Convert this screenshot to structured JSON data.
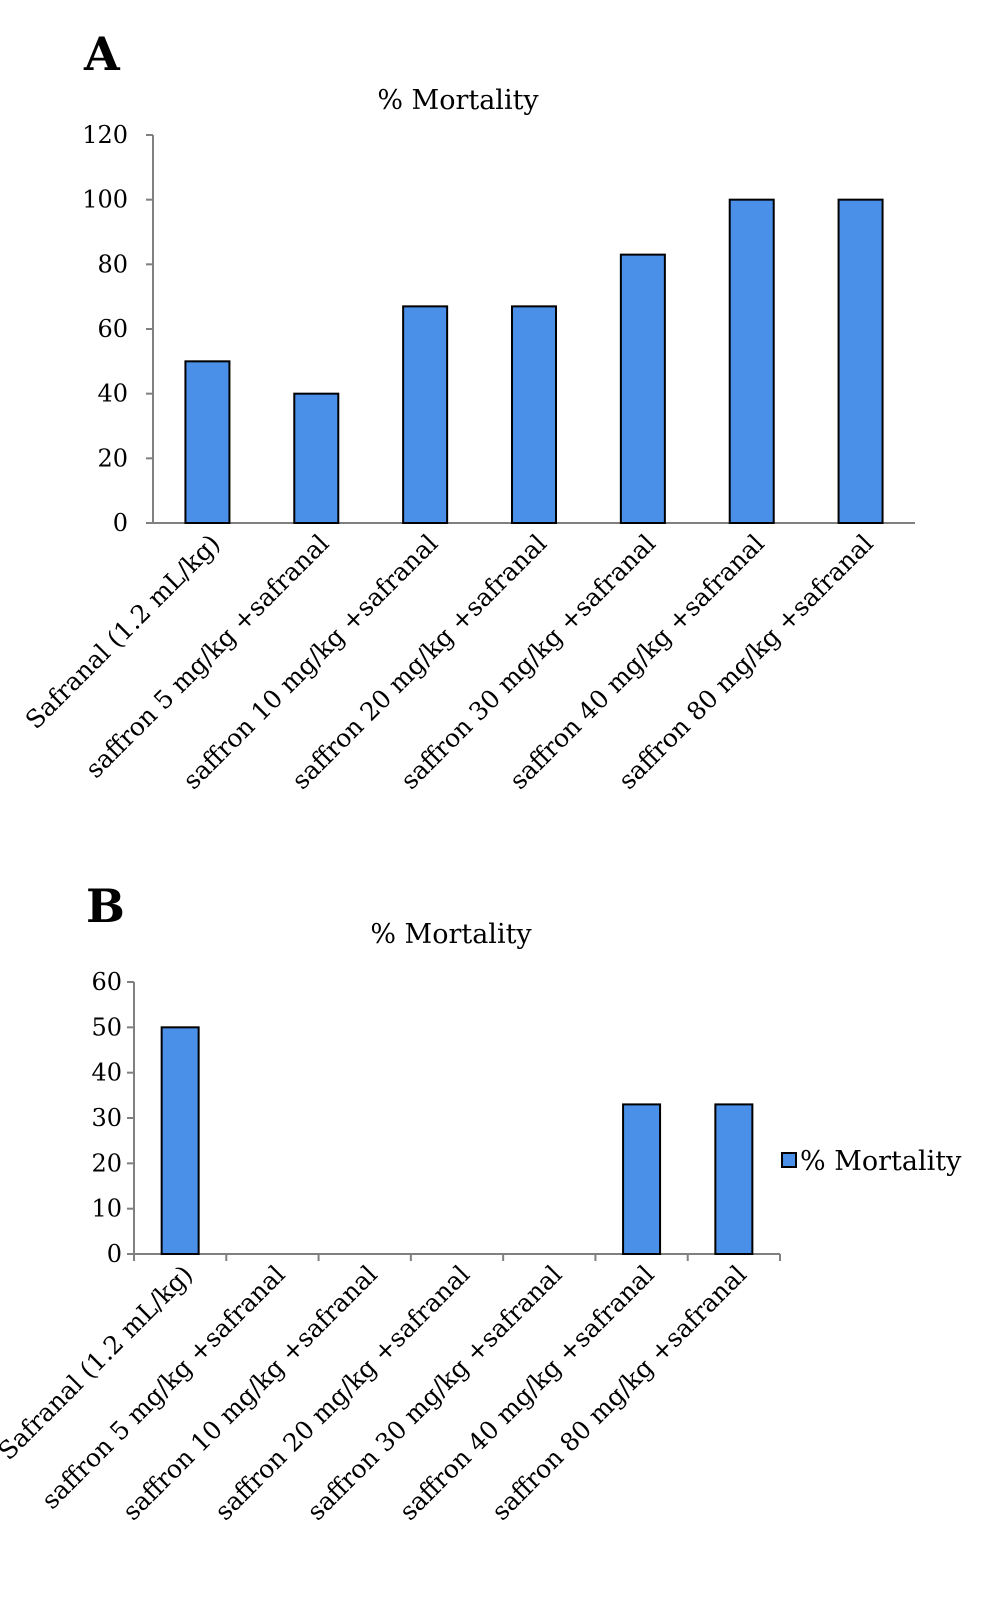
{
  "figure": {
    "panels": [
      {
        "letter": "A"
      },
      {
        "letter": "B"
      }
    ]
  },
  "colors": {
    "bar_fill": "#4A90E8",
    "bar_stroke": "#000000",
    "axis": "#808080"
  },
  "chart_data": [
    {
      "type": "bar",
      "title": "% Mortality",
      "xlabel": "",
      "ylabel": "",
      "ylim": [
        0,
        120
      ],
      "yticks": [
        0,
        20,
        40,
        60,
        80,
        100,
        120
      ],
      "grid": false,
      "legend": null,
      "categories": [
        "Safranal (1.2 mL/kg)",
        "saffron 5 mg/kg +safranal",
        "saffron 10 mg/kg +safranal",
        "saffron 20 mg/kg +safranal",
        "saffron 30 mg/kg +safranal",
        "saffron 40 mg/kg +safranal",
        "saffron 80 mg/kg +safranal"
      ],
      "values": [
        50,
        40,
        67,
        67,
        83,
        100,
        100
      ]
    },
    {
      "type": "bar",
      "title": "% Mortality",
      "xlabel": "",
      "ylabel": "",
      "ylim": [
        0,
        60
      ],
      "yticks": [
        0,
        10,
        20,
        30,
        40,
        50,
        60
      ],
      "grid": false,
      "legend": {
        "position": "right",
        "entries": [
          "% Mortality"
        ]
      },
      "categories": [
        "Safranal (1.2 mL/kg)",
        "saffron 5 mg/kg +safranal",
        "saffron 10 mg/kg +safranal",
        "saffron 20 mg/kg +safranal",
        "saffron 30 mg/kg +safranal",
        "saffron 40 mg/kg +safranal",
        "saffron 80 mg/kg +safranal"
      ],
      "values": [
        50,
        0,
        0,
        0,
        0,
        33,
        33
      ]
    }
  ]
}
